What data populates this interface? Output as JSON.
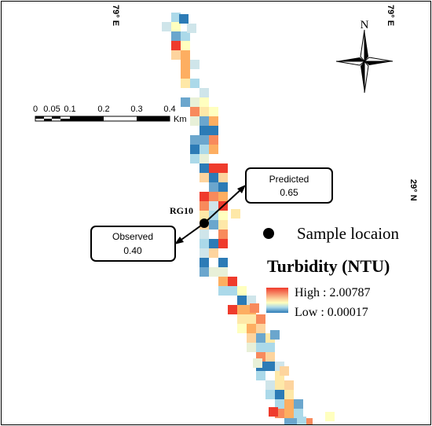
{
  "map": {
    "graticule": {
      "top_left_label": "79° E",
      "top_right_label": "79° E",
      "right_label": "29° N"
    },
    "north_arrow": {
      "label": "N"
    },
    "scale_bar": {
      "ticks": [
        "0",
        "0.05",
        "0.1",
        "0.2",
        "0.3",
        "0.4"
      ],
      "unit": "Km"
    },
    "station": {
      "label": "RG10"
    },
    "callouts": {
      "predicted": {
        "title": "Predicted",
        "value": "0.65"
      },
      "observed": {
        "title": "Observed",
        "value": "0.40"
      }
    },
    "legend": {
      "sample_location": "Sample locaion",
      "title": "Turbidity (NTU)",
      "high_label": "High : 2.00787",
      "low_label": "Low : 0.00017",
      "high_color": "#ef3b2c",
      "mid_color": "#ffffbf",
      "low_color": "#2c7bb6"
    }
  }
}
